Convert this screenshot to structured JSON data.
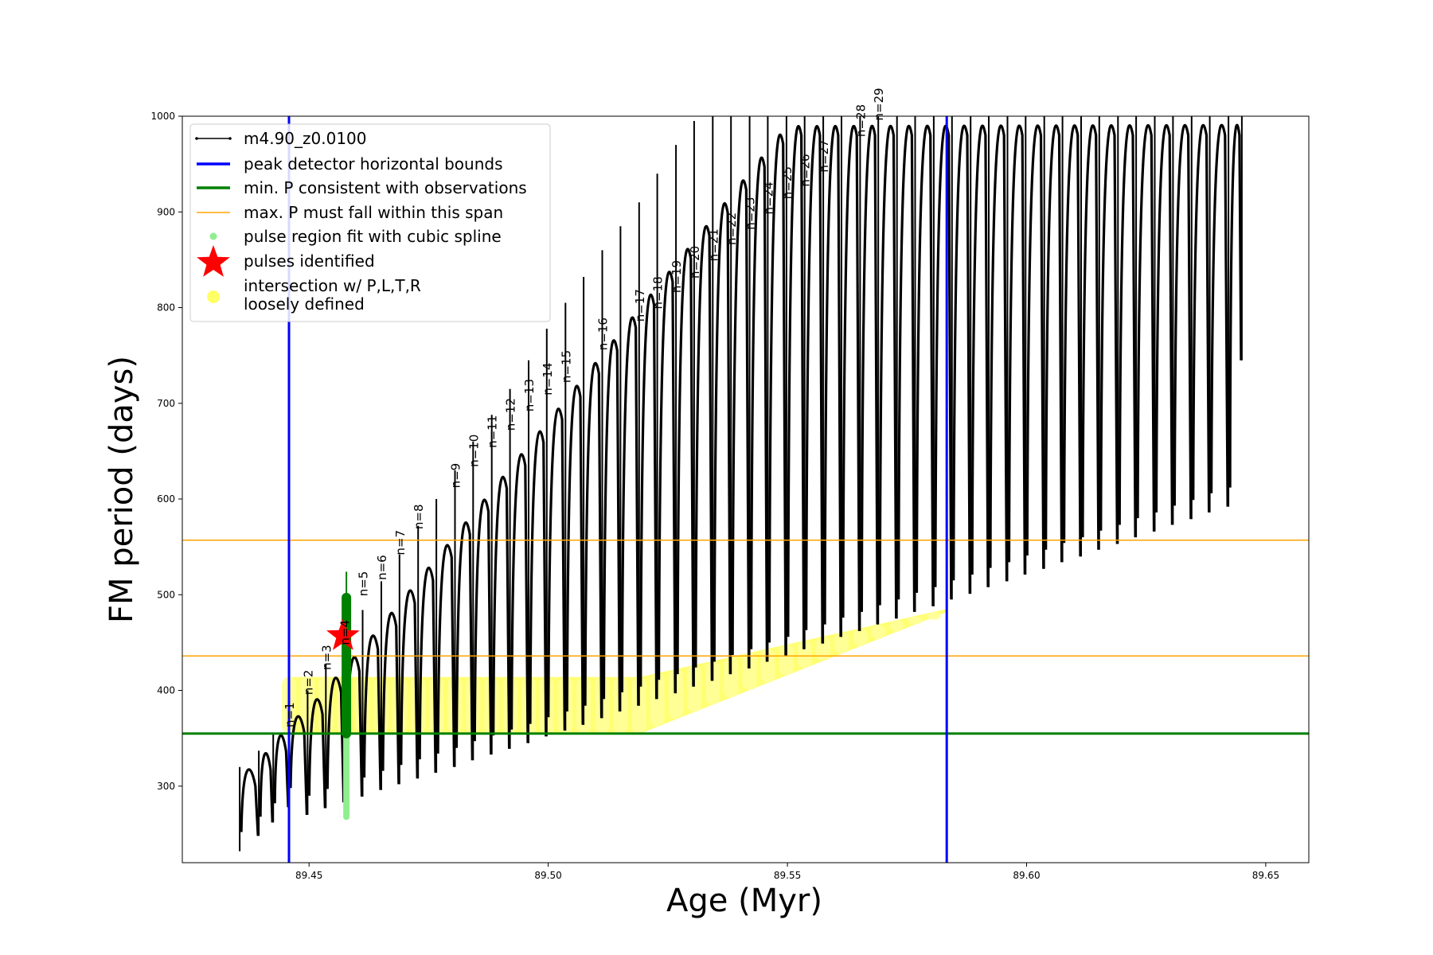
{
  "chart_data": {
    "type": "line",
    "xlabel": "Age (Myr)",
    "ylabel": "FM period (days)",
    "xlim": [
      89.4235,
      89.659
    ],
    "ylim": [
      220,
      1000
    ],
    "xticks": [
      89.45,
      89.5,
      89.55,
      89.6,
      89.65
    ],
    "xtick_labels": [
      "89.45",
      "89.50",
      "89.55",
      "89.60",
      "89.65"
    ],
    "yticks": [
      300,
      400,
      500,
      600,
      700,
      800,
      900,
      1000
    ],
    "ytick_labels": [
      "300",
      "400",
      "500",
      "600",
      "700",
      "800",
      "900",
      "1000"
    ],
    "grid": false,
    "legend_position": "top-left",
    "legend": [
      {
        "label": "m4.90_z0.0100",
        "kind": "line-marker",
        "color": "#000000"
      },
      {
        "label": "peak detector horizontal bounds",
        "kind": "line",
        "color": "#0000ff"
      },
      {
        "label": "min. P consistent with observations",
        "kind": "line",
        "color": "#008000"
      },
      {
        "label": "max. P must fall within this span",
        "kind": "line",
        "color": "#ffa500"
      },
      {
        "label": "pulse region fit with cubic spline",
        "kind": "dot",
        "color": "#90ee90"
      },
      {
        "label": "pulses identified",
        "kind": "star",
        "color": "#ff0000"
      },
      {
        "label": "intersection w/ P,L,T,R",
        "label2": "loosely defined",
        "kind": "dot",
        "color": "#ffff66"
      }
    ],
    "series_name": "m4.90_z0.0100",
    "pulse_ages": [
      89.4355,
      89.4395,
      89.4425,
      89.4458,
      89.4497,
      89.4535,
      89.4574,
      89.4612,
      89.4651,
      89.4689,
      89.4728,
      89.4766,
      89.4805,
      89.4843,
      89.4882,
      89.492,
      89.4959,
      89.4997,
      89.5036,
      89.5074,
      89.5113,
      89.5151,
      89.519,
      89.5228,
      89.5267,
      89.5305,
      89.5344,
      89.5382,
      89.5421,
      89.5459,
      89.5498,
      89.5536,
      89.5575,
      89.5613,
      89.5652,
      89.569,
      89.5729,
      89.5767,
      89.5806,
      89.5844,
      89.5883,
      89.5921,
      89.596,
      89.5998,
      89.6037,
      89.6075,
      89.6114,
      89.6152,
      89.6191,
      89.6229,
      89.6268,
      89.6306,
      89.6345,
      89.6383,
      89.6422,
      89.645
    ],
    "pulse_min_period": [
      232,
      248,
      262,
      278,
      270,
      277,
      283,
      289,
      296,
      302,
      308,
      314,
      320,
      327,
      333,
      339,
      345,
      352,
      358,
      364,
      371,
      378,
      384,
      391,
      397,
      404,
      410,
      417,
      423,
      430,
      436,
      443,
      449,
      456,
      462,
      469,
      475,
      482,
      488,
      495,
      501,
      508,
      514,
      521,
      527,
      534,
      540,
      547,
      553,
      560,
      566,
      573,
      579,
      586,
      592,
      745
    ],
    "pulse_peak_period": [
      320,
      337,
      356,
      376,
      395,
      418,
      440,
      463,
      487,
      511,
      535,
      559,
      583,
      607,
      631,
      655,
      679,
      703,
      727,
      751,
      775,
      799,
      823,
      847,
      871,
      895,
      919,
      943,
      967,
      991,
      1000,
      1000,
      1000,
      1000,
      1000,
      1000,
      1000,
      1000,
      1000,
      1000,
      1000,
      1000,
      1000,
      1000,
      1000,
      1000,
      1000,
      1000,
      1000,
      1000,
      1000,
      1000,
      1000,
      1000,
      1000,
      1000
    ],
    "pulse_spike_period": [
      320,
      337,
      356,
      376,
      400,
      428,
      455,
      484,
      514,
      542,
      572,
      600,
      630,
      660,
      688,
      715,
      745,
      778,
      805,
      832,
      860,
      885,
      910,
      940,
      970,
      995,
      1000,
      1000,
      1000,
      1000,
      1000,
      1000,
      1000,
      1000,
      1000,
      1000,
      1000,
      1000,
      1000,
      1000,
      1000,
      1000,
      1000,
      1000,
      1000,
      1000,
      1000,
      1000,
      1000,
      1000,
      1000,
      1000,
      1000,
      1000,
      1000,
      1000
    ],
    "pulse_labels": [
      {
        "text": "n=1",
        "x": 89.4458,
        "y": 358
      },
      {
        "text": "n=2",
        "x": 89.4497,
        "y": 392
      },
      {
        "text": "n=3",
        "x": 89.4535,
        "y": 418
      },
      {
        "text": "n=4",
        "x": 89.4574,
        "y": 444
      },
      {
        "text": "n=5",
        "x": 89.4612,
        "y": 495
      },
      {
        "text": "n=6",
        "x": 89.4651,
        "y": 512
      },
      {
        "text": "n=7",
        "x": 89.4689,
        "y": 538
      },
      {
        "text": "n=8",
        "x": 89.4728,
        "y": 565
      },
      {
        "text": "n=9",
        "x": 89.4805,
        "y": 608
      },
      {
        "text": "n=10",
        "x": 89.4843,
        "y": 630
      },
      {
        "text": "n=11",
        "x": 89.4882,
        "y": 650
      },
      {
        "text": "n=12",
        "x": 89.492,
        "y": 668
      },
      {
        "text": "n=13",
        "x": 89.4959,
        "y": 688
      },
      {
        "text": "n=14",
        "x": 89.4997,
        "y": 705
      },
      {
        "text": "n=15",
        "x": 89.5036,
        "y": 718
      },
      {
        "text": "n=16",
        "x": 89.5113,
        "y": 752
      },
      {
        "text": "n=17",
        "x": 89.519,
        "y": 782
      },
      {
        "text": "n=18",
        "x": 89.5228,
        "y": 795
      },
      {
        "text": "n=19",
        "x": 89.5267,
        "y": 812
      },
      {
        "text": "n=20",
        "x": 89.5305,
        "y": 827
      },
      {
        "text": "n=21",
        "x": 89.5344,
        "y": 845
      },
      {
        "text": "n=22",
        "x": 89.5382,
        "y": 862
      },
      {
        "text": "n=23",
        "x": 89.5421,
        "y": 878
      },
      {
        "text": "n=24",
        "x": 89.5459,
        "y": 894
      },
      {
        "text": "n=25",
        "x": 89.5498,
        "y": 910
      },
      {
        "text": "n=26",
        "x": 89.5536,
        "y": 923
      },
      {
        "text": "n=27",
        "x": 89.5575,
        "y": 938
      },
      {
        "text": "n=28",
        "x": 89.5652,
        "y": 975
      },
      {
        "text": "n=29",
        "x": 89.569,
        "y": 992
      }
    ],
    "blue_vlines": [
      89.4458,
      89.5833
    ],
    "green_hline": 355,
    "orange_hlines": [
      436,
      557
    ],
    "green_spike": {
      "x": 89.4578,
      "ymin": 268,
      "ymax": 524
    },
    "star": {
      "x": 89.4571,
      "y": 457
    },
    "yellow_region": {
      "x_start": 89.4458,
      "x_end": 89.5833,
      "upper_flat_x_end": 89.5192,
      "upper_flat_y": 414,
      "lower_flat_x_end": 89.5192,
      "lower_flat_y": 355,
      "upper_end_y": 485,
      "lower_end_y": 490
    },
    "colors": {
      "series": "#000000",
      "blue": "#0000ff",
      "green": "#008000",
      "orange": "#ffa500",
      "lightgreen": "#90ee90",
      "star": "#ff0000",
      "yellow": "#ffff00",
      "yellow_light": "#ffff99"
    }
  }
}
